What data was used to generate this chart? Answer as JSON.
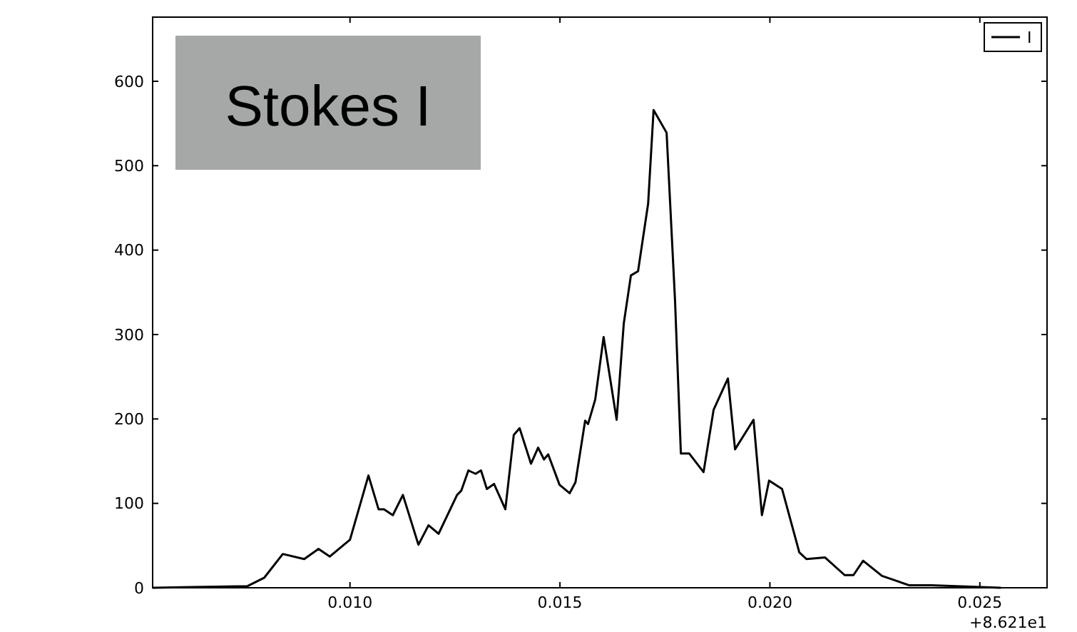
{
  "chart_data": {
    "type": "line",
    "title": "Stokes I",
    "x": [
      0.0053,
      0.00756,
      0.00796,
      0.0084,
      0.00891,
      0.00925,
      0.00952,
      0.01,
      0.01044,
      0.01068,
      0.01081,
      0.01102,
      0.01126,
      0.01163,
      0.01187,
      0.01211,
      0.01255,
      0.01265,
      0.01282,
      0.01299,
      0.01312,
      0.01326,
      0.01343,
      0.0137,
      0.0139,
      0.01404,
      0.01431,
      0.01448,
      0.01462,
      0.01472,
      0.01499,
      0.01523,
      0.01537,
      0.0156,
      0.01567,
      0.01584,
      0.01604,
      0.01635,
      0.01652,
      0.01669,
      0.01686,
      0.0171,
      0.01723,
      0.01754,
      0.01774,
      0.01788,
      0.01808,
      0.01842,
      0.01866,
      0.019,
      0.01917,
      0.01961,
      0.01981,
      0.01998,
      0.02029,
      0.0207,
      0.02087,
      0.02131,
      0.02178,
      0.02199,
      0.02222,
      0.02267,
      0.02297,
      0.02331,
      0.02385,
      0.0255
    ],
    "series": [
      {
        "name": "I",
        "color": "#000000",
        "values": [
          0,
          2,
          12,
          40,
          34,
          46,
          37,
          57,
          133,
          93,
          93,
          86,
          110,
          51,
          74,
          64,
          110,
          115,
          139,
          135,
          139,
          117,
          123,
          93,
          181,
          189,
          147,
          166,
          152,
          158,
          122,
          112,
          125,
          198,
          194,
          223,
          297,
          199,
          313,
          370,
          375,
          455,
          566,
          539,
          341,
          159,
          159,
          137,
          211,
          248,
          164,
          199,
          86,
          127,
          117,
          42,
          34,
          36,
          15,
          15,
          32,
          14,
          9,
          3,
          3,
          0
        ]
      }
    ],
    "xlim": [
      0.0053,
      0.0266
    ],
    "xticks": [
      {
        "value": 0.01,
        "label": "0.010"
      },
      {
        "value": 0.015,
        "label": "0.015"
      },
      {
        "value": 0.02,
        "label": "0.020"
      },
      {
        "value": 0.025,
        "label": "0.025"
      }
    ],
    "ylim": [
      0,
      676
    ],
    "yticks": [
      0,
      100,
      200,
      300,
      400,
      500,
      600
    ],
    "annotations": [
      "+8.621e1"
    ],
    "legend": "top right",
    "grid": false,
    "line_style": "solid",
    "marker": "none"
  }
}
